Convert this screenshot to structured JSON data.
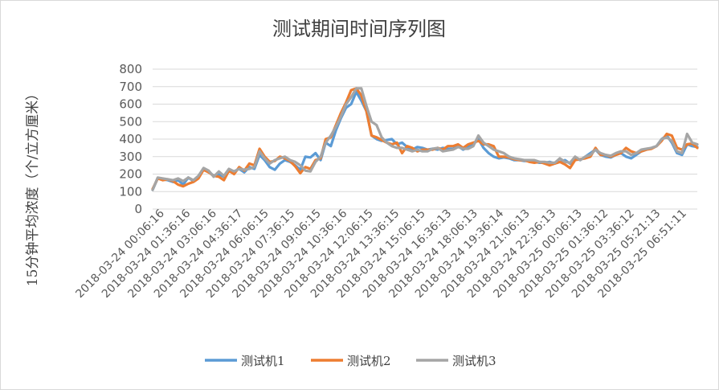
{
  "chart_data": {
    "type": "line",
    "title": "测试期间时间序列图",
    "xlabel": "",
    "ylabel": "15分钟平均浓度（个/立方厘米）",
    "ylim": [
      0,
      800
    ],
    "yticks": [
      0,
      100,
      200,
      300,
      400,
      500,
      600,
      700,
      800
    ],
    "grid": true,
    "legend": "bottom",
    "x_tick_labels": [
      "2018-03-24 00:06:16",
      "2018-03-24 01:36:16",
      "2018-03-24 03:06:16",
      "2018-03-24 04:36:17",
      "2018-03-24 06:06:15",
      "2018-03-24 07:36:15",
      "2018-03-24 09:06:15",
      "2018-03-24 10:36:16",
      "2018-03-24 12:06:15",
      "2018-03-24 13:36:15",
      "2018-03-24 15:06:15",
      "2018-03-24 16:36:13",
      "2018-03-24 18:06:13",
      "2018-03-24 19:36:14",
      "2018-03-24 21:06:13",
      "2018-03-24 22:36:13",
      "2018-03-25 00:06:13",
      "2018-03-25 01:36:12",
      "2018-03-25 03:36:12",
      "2018-03-25 05:21:13",
      "2018-03-25 06:51:11"
    ],
    "series": [
      {
        "name": "测试机1",
        "color": "#5b9bd5",
        "values": [
          110,
          175,
          170,
          165,
          155,
          165,
          140,
          180,
          160,
          190,
          230,
          215,
          190,
          200,
          185,
          220,
          215,
          230,
          210,
          240,
          230,
          310,
          280,
          240,
          225,
          260,
          280,
          270,
          250,
          225,
          300,
          295,
          320,
          280,
          380,
          360,
          450,
          520,
          580,
          600,
          670,
          620,
          560,
          420,
          400,
          390,
          395,
          400,
          370,
          380,
          355,
          340,
          355,
          350,
          340,
          345,
          340,
          350,
          345,
          345,
          360,
          340,
          355,
          370,
          400,
          350,
          320,
          300,
          290,
          295,
          290,
          280,
          280,
          275,
          275,
          270,
          265,
          265,
          270,
          260,
          270,
          280,
          260,
          290,
          280,
          300,
          320,
          340,
          310,
          300,
          295,
          310,
          320,
          300,
          290,
          310,
          330,
          340,
          350,
          360,
          400,
          420,
          380,
          320,
          310,
          370,
          360,
          355
        ]
      },
      {
        "name": "测试机2",
        "color": "#ed7d31",
        "values": [
          115,
          175,
          165,
          170,
          160,
          140,
          130,
          145,
          155,
          175,
          225,
          210,
          190,
          185,
          165,
          220,
          200,
          240,
          220,
          260,
          250,
          345,
          300,
          270,
          275,
          300,
          290,
          275,
          245,
          205,
          240,
          230,
          280,
          290,
          400,
          410,
          480,
          550,
          610,
          680,
          690,
          650,
          560,
          420,
          410,
          395,
          380,
          370,
          380,
          320,
          360,
          350,
          330,
          340,
          340,
          340,
          350,
          340,
          360,
          360,
          370,
          350,
          370,
          380,
          390,
          370,
          370,
          360,
          300,
          300,
          295,
          285,
          280,
          280,
          270,
          265,
          270,
          260,
          250,
          260,
          270,
          255,
          235,
          280,
          285,
          290,
          300,
          350,
          310,
          310,
          300,
          310,
          320,
          350,
          330,
          320,
          330,
          340,
          345,
          360,
          390,
          430,
          420,
          350,
          340,
          370,
          375,
          350
        ]
      },
      {
        "name": "测试机3",
        "color": "#a5a5a5",
        "values": [
          110,
          180,
          175,
          170,
          165,
          175,
          160,
          180,
          165,
          190,
          235,
          220,
          185,
          215,
          190,
          230,
          215,
          230,
          225,
          230,
          240,
          330,
          290,
          260,
          280,
          290,
          300,
          280,
          270,
          250,
          220,
          215,
          270,
          300,
          380,
          420,
          470,
          530,
          600,
          640,
          690,
          690,
          590,
          500,
          480,
          410,
          380,
          360,
          350,
          350,
          340,
          330,
          340,
          330,
          330,
          345,
          350,
          330,
          335,
          340,
          355,
          345,
          345,
          360,
          420,
          380,
          360,
          340,
          330,
          320,
          300,
          290,
          285,
          280,
          280,
          280,
          270,
          270,
          265,
          265,
          290,
          270,
          265,
          300,
          280,
          300,
          310,
          340,
          320,
          310,
          305,
          320,
          330,
          330,
          310,
          320,
          340,
          345,
          350,
          360,
          400,
          410,
          390,
          330,
          320,
          430,
          380,
          370
        ]
      }
    ]
  }
}
